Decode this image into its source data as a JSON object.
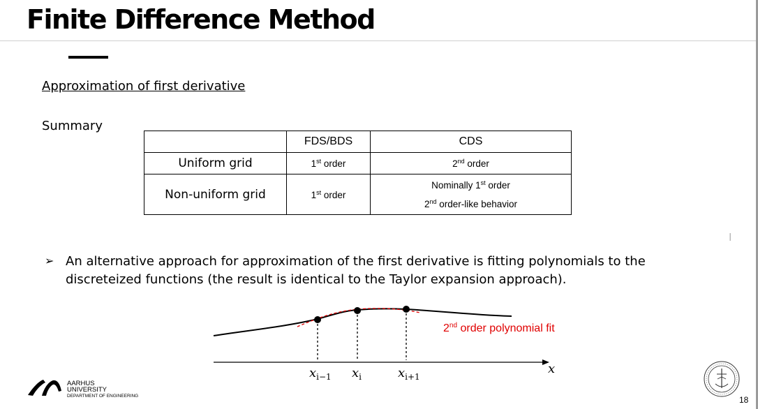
{
  "slide": {
    "title": "Finite Difference Method",
    "subheading": "Approximation of first derivative",
    "summary_label": "Summary",
    "page_number": "18"
  },
  "table": {
    "headers": [
      "",
      "FDS/BDS",
      "CDS"
    ],
    "rows": [
      {
        "label": "Uniform grid",
        "fds_num": "1",
        "fds_sup": "st",
        "fds_text": " order",
        "cds_num": "2",
        "cds_sup": "nd",
        "cds_text": " order"
      },
      {
        "label": "Non-uniform grid",
        "fds_num": "1",
        "fds_sup": "st",
        "fds_text": " order",
        "cds_line1_pre": "Nominally 1",
        "cds_line1_sup": "st",
        "cds_line1_post": " order",
        "cds_line2_pre": "2",
        "cds_line2_sup": "nd",
        "cds_line2_post": " order-like behavior"
      }
    ]
  },
  "bullet": {
    "arrow": "➢",
    "text": "An alternative approach for approximation of the first derivative is fitting polynomials to the discreteized functions (the result is identical to the Taylor expansion approach)."
  },
  "diagram": {
    "fit_label_num": "2",
    "fit_label_sup": "nd",
    "fit_label_text": " order polynomial fit",
    "fit_color": "#e00000",
    "axis_label": "x",
    "point_labels": [
      {
        "base": "x",
        "sub": "i−1"
      },
      {
        "base": "x",
        "sub": "i"
      },
      {
        "base": "x",
        "sub": "i+1"
      }
    ]
  },
  "footer": {
    "university_line1": "AARHUS",
    "university_line2": "UNIVERSITY",
    "department": "DEPARTMENT OF ENGINEERING"
  }
}
